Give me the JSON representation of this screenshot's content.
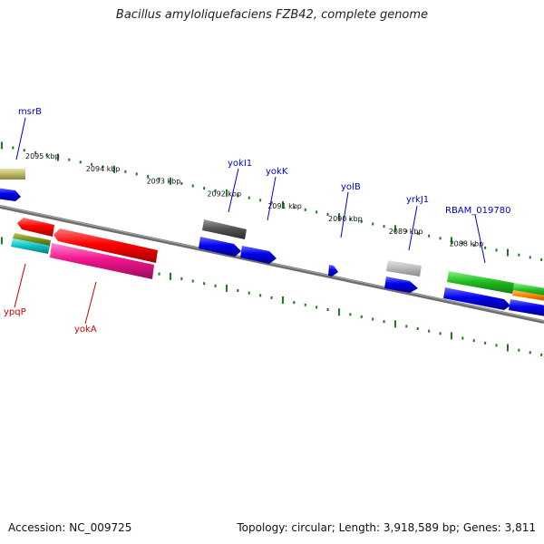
{
  "title": "Bacillus amyloliquefaciens FZB42, complete genome",
  "footer": {
    "accession": "Accession: NC_009725",
    "topology": "Topology: circular; Length: 3,918,589 bp; Genes: 3,811"
  },
  "colors": {
    "forward_label": "#0000cc",
    "reverse_label": "#cc0000",
    "ticks": "#1a7a1a",
    "backbone": "#777777"
  },
  "scale_labels": [
    {
      "kbp": 2095,
      "label": "2095 kbp"
    },
    {
      "kbp": 2094,
      "label": "2094 kbp"
    },
    {
      "kbp": 2093,
      "label": "2093 kbp"
    },
    {
      "kbp": 2092,
      "label": "2092 kbp"
    },
    {
      "kbp": 2091,
      "label": "2091 kbp"
    },
    {
      "kbp": 2090,
      "label": "2090 kbp"
    },
    {
      "kbp": 2089,
      "label": "2089 kbp"
    },
    {
      "kbp": 2088,
      "label": "2088 kbp"
    }
  ],
  "gene_labels": [
    {
      "name": "msrB",
      "strand": "forward"
    },
    {
      "name": "yokI1",
      "strand": "forward"
    },
    {
      "name": "yokK",
      "strand": "forward"
    },
    {
      "name": "yolB",
      "strand": "forward"
    },
    {
      "name": "yrkJ1",
      "strand": "forward"
    },
    {
      "name": "RBAM_019780",
      "strand": "forward"
    },
    {
      "name": "ypqP",
      "strand": "reverse"
    },
    {
      "name": "yokA",
      "strand": "reverse"
    }
  ]
}
